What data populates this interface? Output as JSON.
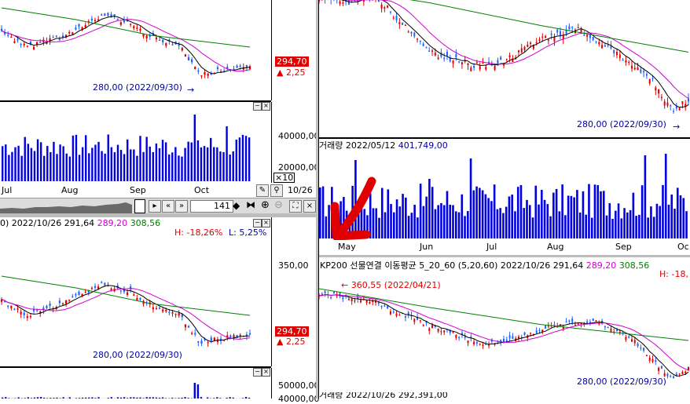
{
  "left_top": {
    "price_tag": "294,70",
    "change": "▲ 2,25",
    "low_marker": "280,00 (2022/09/30)",
    "vol_tick_1": "40000,00",
    "vol_tick_2": "20000,00",
    "vol_multiplier": "×10",
    "x_labels": [
      "Jul",
      "Aug",
      "Sep",
      "Oct"
    ],
    "date_label": "10/26"
  },
  "toolbar": {
    "count": "141"
  },
  "left_bottom": {
    "title_prefix": "0) 2022/10/26",
    "title_close": "291,64",
    "title_ma20": "289,20",
    "title_ma60": "308,56",
    "high_pct": "H: -18,26%",
    "low_pct": "L: 5,25%",
    "y_tick": "350,00",
    "price_tag": "294,70",
    "change": "▲ 2,25",
    "low_marker": "280,00 (2022/09/30)",
    "vol_tick": "50000,00",
    "vol_tick_cut": "40000,00"
  },
  "right_top": {
    "low_marker": "280,00 (2022/09/30)",
    "volume_title": "거래량",
    "volume_date": "2022/05/12",
    "volume_value": "401,749,00",
    "x_labels": [
      "May",
      "Jun",
      "Jul",
      "Aug",
      "Sep",
      "Oc"
    ]
  },
  "right_bottom": {
    "title_name": "KP200 선물연결 이동평균 5_20_60",
    "title_params": "(5,20,60)",
    "title_date": "2022/10/26",
    "title_close": "291,64",
    "title_ma20": "289,20",
    "title_ma60": "308,56",
    "high_pct": "H: -18,",
    "high_marker": "← 360,55 (2022/04/21)",
    "low_marker": "280,00 (2022/09/30)",
    "cut_title": "거래량 2022/10/26 292,391,00"
  },
  "colors": {
    "up": "#e00000",
    "down": "#2060ff",
    "ma5": "#000000",
    "ma20": "#d000d0",
    "ma60": "#008000",
    "volume": "#0000e0",
    "annotation": "#e00000"
  }
}
